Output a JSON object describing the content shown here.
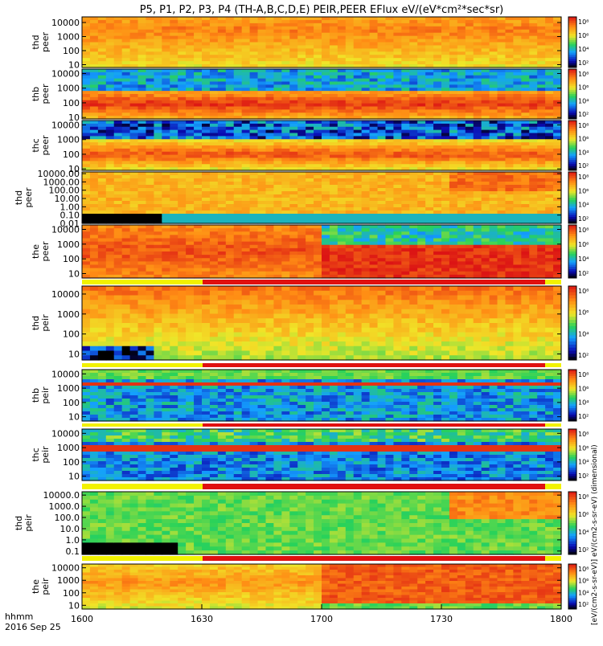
{
  "chart_data": {
    "type": "heatmap",
    "title": "P5, P1, P2, P3, P4 (TH-A,B,C,D,E) PEIR,PEER EFlux eV/(eV*cm²*sec*sr)",
    "x_axis": {
      "ticks": [
        "1600",
        "1630",
        "1700",
        "1730",
        "1800"
      ],
      "label_top": "hhmm",
      "label_bottom": "2016 Sep 25",
      "range_minutes": [
        0,
        120
      ]
    },
    "colorbar_label": "[eV/(cm2-s-sr-eV)] eV/(cm2-s-sr-eV) (dimensional)",
    "colorbar_ticks": [
      "10⁸",
      "10⁶",
      "10⁴",
      "10²"
    ],
    "panels": [
      {
        "name": "thd peer",
        "line1": "thd",
        "line2": "peer",
        "yticks": [
          "10000",
          "1000",
          "100",
          "10"
        ],
        "yrange_log": [
          0.8,
          4.4
        ],
        "pattern": "peer_a"
      },
      {
        "name": "thb peer",
        "line1": "thb",
        "line2": "peer",
        "yticks": [
          "10000",
          "1000",
          "100",
          "10"
        ],
        "yrange_log": [
          0.9,
          4.3
        ],
        "pattern": "peer_b"
      },
      {
        "name": "thc peer",
        "line1": "thc",
        "line2": "peer",
        "yticks": [
          "10000",
          "1000",
          "100",
          "10"
        ],
        "yrange_log": [
          0.9,
          4.3
        ],
        "pattern": "peer_c"
      },
      {
        "name": "thd peer (2)",
        "line1": "thd",
        "line2": "peer",
        "yticks": [
          "10000.00",
          "1000.00",
          "100.00",
          "10.00",
          "1.00",
          "0.10",
          "0.01"
        ],
        "yrange_log": [
          -2.0,
          4.2
        ],
        "pattern": "peer_d"
      },
      {
        "name": "the peer",
        "line1": "the",
        "line2": "peer",
        "yticks": [
          "10000",
          "1000",
          "100",
          "10"
        ],
        "yrange_log": [
          0.7,
          4.3
        ],
        "pattern": "peer_e"
      },
      {
        "name": "thd peir",
        "line1": "thd",
        "line2": "peir",
        "yticks": [
          "10000",
          "1000",
          "100",
          "10"
        ],
        "yrange_log": [
          0.7,
          4.4
        ],
        "pattern": "peir_a"
      },
      {
        "name": "thb peir",
        "line1": "thb",
        "line2": "peir",
        "yticks": [
          "10000",
          "1000",
          "100",
          "10"
        ],
        "yrange_log": [
          0.7,
          4.3
        ],
        "pattern": "peir_b"
      },
      {
        "name": "thc peir",
        "line1": "thc",
        "line2": "peir",
        "yticks": [
          "10000",
          "1000",
          "100",
          "10"
        ],
        "yrange_log": [
          0.7,
          4.3
        ],
        "pattern": "peir_c"
      },
      {
        "name": "thd peir (2)",
        "line1": "thd",
        "line2": "peir",
        "yticks": [
          "10000.0",
          "1000.0",
          "100.0",
          "10.0",
          "1.0",
          "0.1"
        ],
        "yrange_log": [
          -1.3,
          4.3
        ],
        "pattern": "peir_d"
      },
      {
        "name": "the peir",
        "line1": "the",
        "line2": "peir",
        "yticks": [
          "10000",
          "1000",
          "100",
          "10"
        ],
        "yrange_log": [
          0.7,
          4.3
        ],
        "pattern": "peir_e"
      }
    ]
  }
}
